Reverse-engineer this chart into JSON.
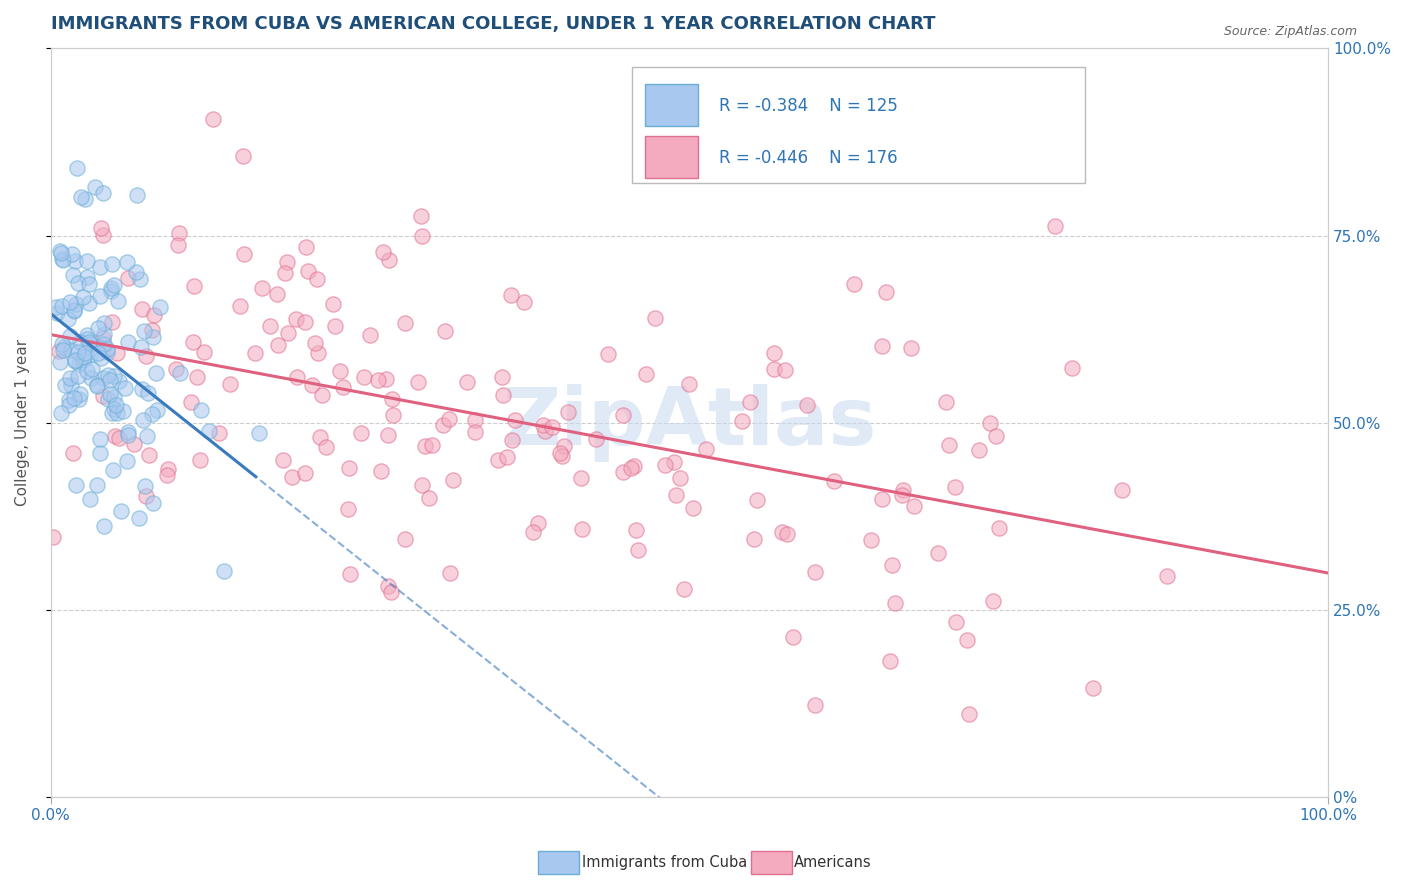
{
  "title": "IMMIGRANTS FROM CUBA VS AMERICAN COLLEGE, UNDER 1 YEAR CORRELATION CHART",
  "source_text": "Source: ZipAtlas.com",
  "ylabel": "College, Under 1 year",
  "xmin": 0.0,
  "xmax": 1.0,
  "ymin": 0.0,
  "ymax": 1.0,
  "ytick_positions": [
    0.0,
    0.25,
    0.5,
    0.75,
    1.0
  ],
  "ytick_labels_right": [
    "0%",
    "25.0%",
    "50.0%",
    "75.0%",
    "100.0%"
  ],
  "series": [
    {
      "name": "Immigrants from Cuba",
      "color": "#a8c8f0",
      "edge_color": "#6aaed6",
      "R": -0.384,
      "N": 125,
      "line_color": "#3a7abf",
      "line_style": "-"
    },
    {
      "name": "Americans",
      "color": "#f4aabf",
      "edge_color": "#e07090",
      "R": -0.446,
      "N": 176,
      "line_color": "#e06080",
      "line_style": "-"
    }
  ],
  "watermark": "ZipAtlas",
  "watermark_color": "#c8d8f0",
  "background_color": "#ffffff",
  "grid_color": "#c8c8c8",
  "title_color": "#1f4e79",
  "seed": 42
}
